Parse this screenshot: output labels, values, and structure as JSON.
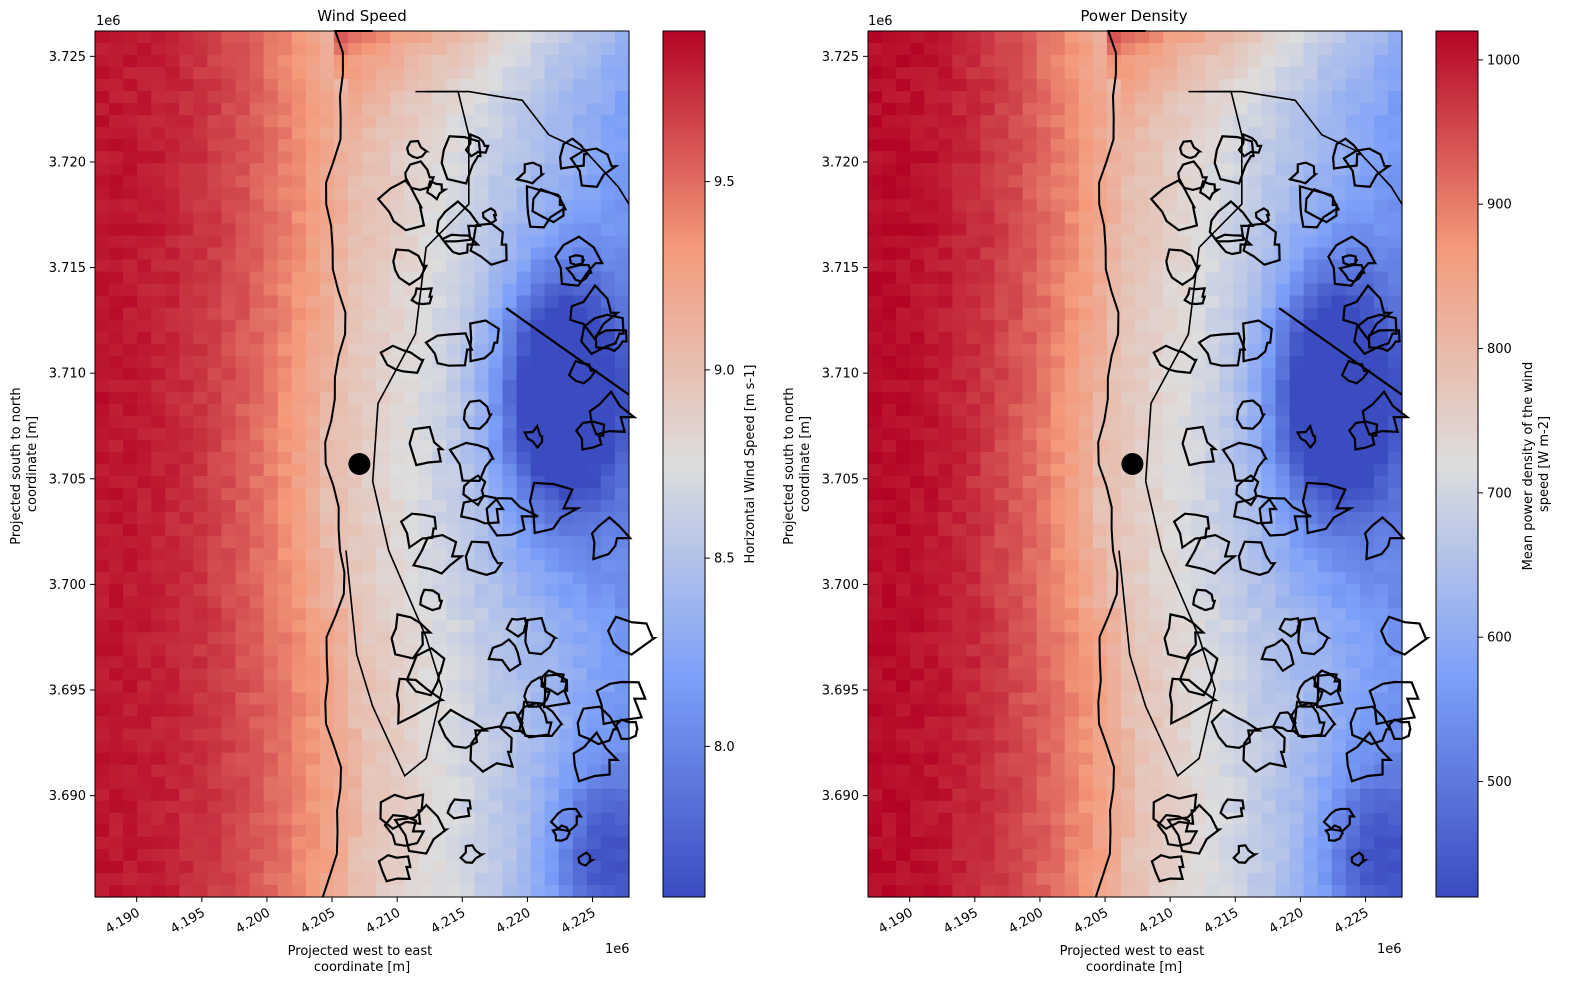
{
  "chart_data": [
    {
      "type": "heatmap",
      "title": "Wind Speed",
      "xlabel": [
        "Projected west to east",
        "coordinate [m]"
      ],
      "ylabel": [
        "Projected south to north",
        "coordinate [m]"
      ],
      "x_offset_label": "1e6",
      "y_offset_label": "1e6",
      "xlim": [
        4.1868,
        4.2278
      ],
      "ylim": [
        3.6852,
        3.7262
      ],
      "x_ticks": [
        4.19,
        4.195,
        4.2,
        4.205,
        4.21,
        4.215,
        4.22,
        4.225
      ],
      "x_tick_labels": [
        "4.190",
        "4.195",
        "4.200",
        "4.205",
        "4.210",
        "4.215",
        "4.220",
        "4.225"
      ],
      "y_ticks": [
        3.69,
        3.695,
        3.7,
        3.705,
        3.71,
        3.715,
        3.72,
        3.725
      ],
      "y_tick_labels": [
        "3.690",
        "3.695",
        "3.700",
        "3.705",
        "3.710",
        "3.715",
        "3.720",
        "3.725"
      ],
      "colormap": "coolwarm",
      "colorbar": {
        "label": "Horizontal Wind Speed [m s-1]",
        "range": [
          7.6,
          9.9
        ],
        "ticks": [
          8.0,
          8.5,
          9.0,
          9.5
        ],
        "tick_labels": [
          "8.0",
          "8.5",
          "9.0",
          "9.5"
        ]
      },
      "marker": {
        "x": 4.2071,
        "y": 3.7057,
        "symbol": "filled circle"
      }
    },
    {
      "type": "heatmap",
      "title": "Power Density",
      "xlabel": [
        "Projected west to east",
        "coordinate [m]"
      ],
      "ylabel": [
        "Projected south to north",
        "coordinate [m]"
      ],
      "x_offset_label": "1e6",
      "y_offset_label": "1e6",
      "xlim": [
        4.1868,
        4.2278
      ],
      "ylim": [
        3.6852,
        3.7262
      ],
      "x_ticks": [
        4.19,
        4.195,
        4.2,
        4.205,
        4.21,
        4.215,
        4.22,
        4.225
      ],
      "x_tick_labels": [
        "4.190",
        "4.195",
        "4.200",
        "4.205",
        "4.210",
        "4.215",
        "4.220",
        "4.225"
      ],
      "y_ticks": [
        3.69,
        3.695,
        3.7,
        3.705,
        3.71,
        3.715,
        3.72,
        3.725
      ],
      "y_tick_labels": [
        "3.690",
        "3.695",
        "3.700",
        "3.705",
        "3.710",
        "3.715",
        "3.720",
        "3.725"
      ],
      "colormap": "coolwarm",
      "colorbar": {
        "label": [
          "Mean power density of the wind",
          "speed [W m-2]"
        ],
        "range": [
          420,
          1020
        ],
        "ticks": [
          500,
          600,
          700,
          800,
          900,
          1000
        ],
        "tick_labels": [
          "500",
          "600",
          "700",
          "800",
          "900",
          "1000"
        ]
      },
      "marker": {
        "x": 4.2071,
        "y": 3.7057,
        "symbol": "filled circle"
      }
    }
  ]
}
